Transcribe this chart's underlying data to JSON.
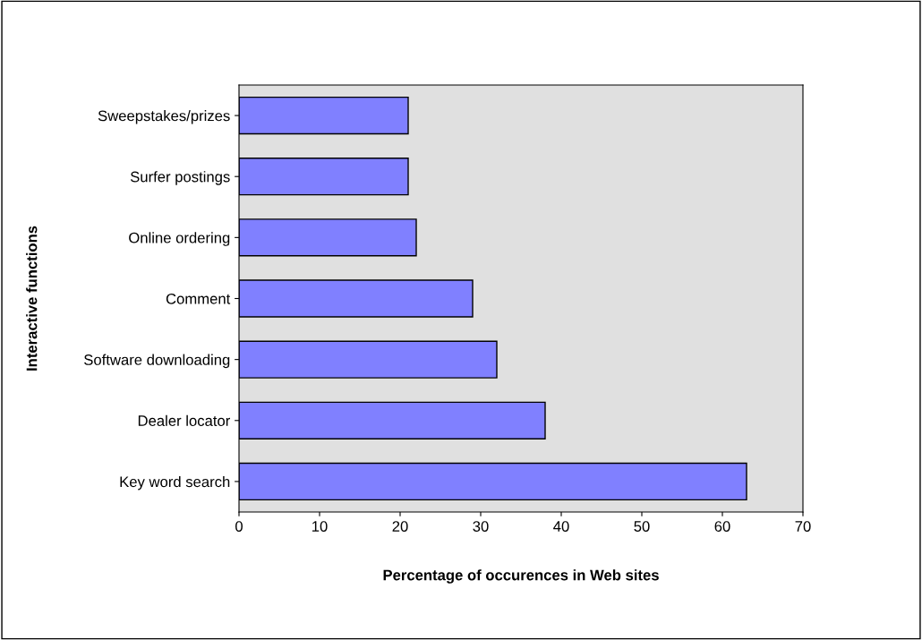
{
  "chart_data": {
    "type": "bar",
    "orientation": "horizontal",
    "xlabel": "Percentage of occurences in Web sites",
    "ylabel": "Interactive functions",
    "categories": [
      "Sweepstakes/prizes",
      "Surfer postings",
      "Online ordering",
      "Comment",
      "Software downloading",
      "Dealer locator",
      "Key word search"
    ],
    "values": [
      21,
      21,
      22,
      29,
      32,
      38,
      63
    ],
    "color": "#8080ff",
    "xlim": [
      0,
      70
    ],
    "xticks": [
      0,
      10,
      20,
      30,
      40,
      50,
      60,
      70
    ],
    "grid": false
  }
}
